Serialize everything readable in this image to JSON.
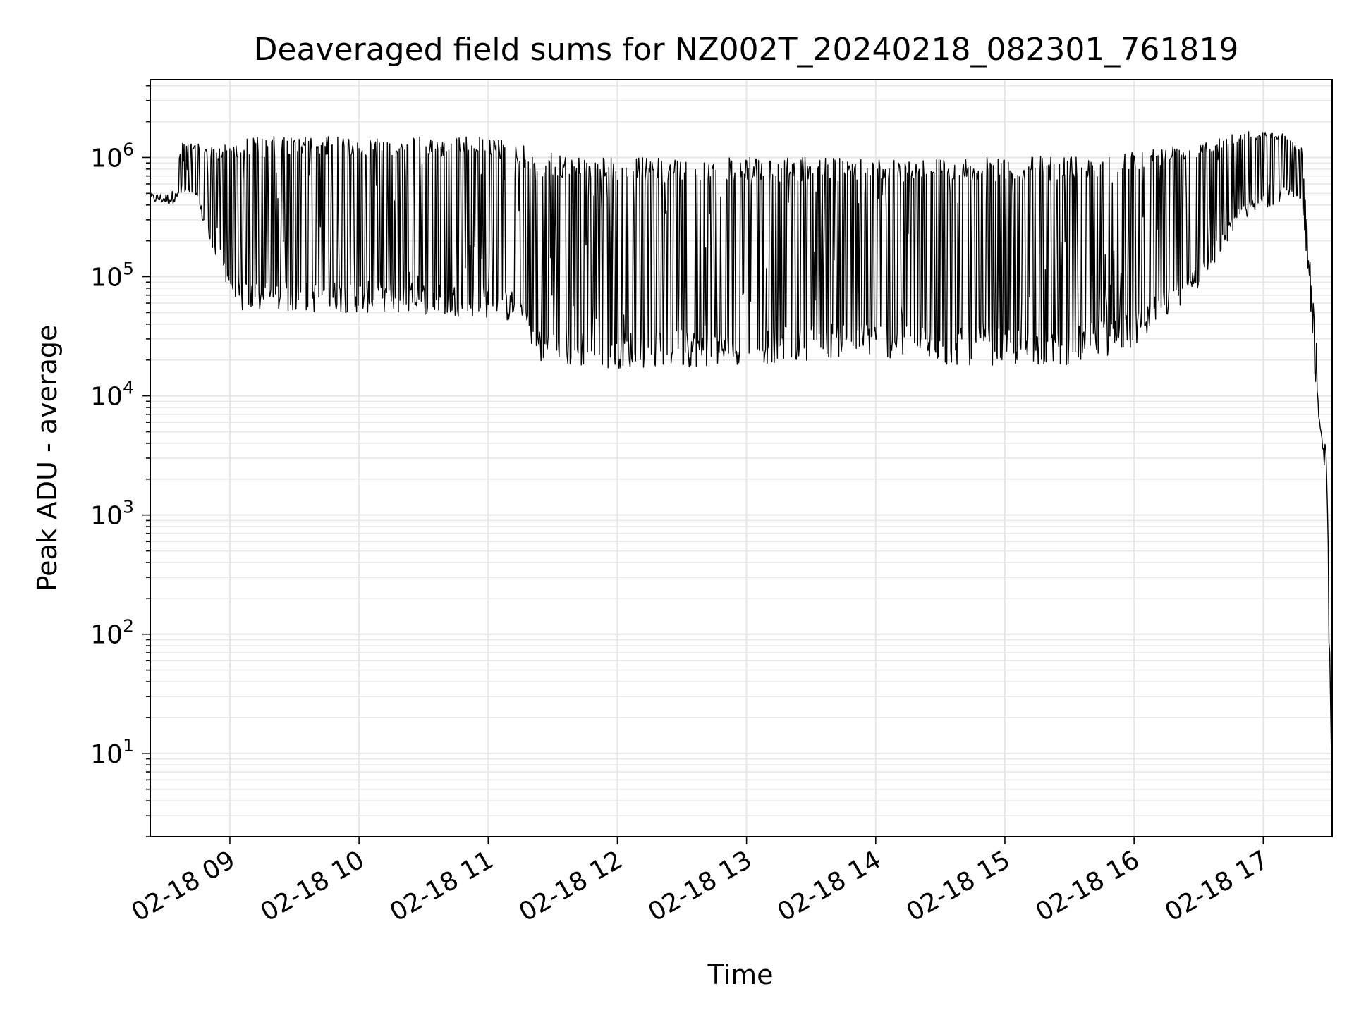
{
  "chart_data": {
    "type": "line",
    "title": "Deaveraged field sums for NZ002T_20240218_082301_761819",
    "xlabel": "Time",
    "ylabel": "Peak ADU - average",
    "yscale": "log",
    "grid": true,
    "x_tick_labels": [
      "02-18 09",
      "02-18 10",
      "02-18 11",
      "02-18 12",
      "02-18 13",
      "02-18 14",
      "02-18 15",
      "02-18 16",
      "02-18 17"
    ],
    "y_tick_labels": [
      {
        "base": "10",
        "exp": "1"
      },
      {
        "base": "10",
        "exp": "2"
      },
      {
        "base": "10",
        "exp": "3"
      },
      {
        "base": "10",
        "exp": "4"
      },
      {
        "base": "10",
        "exp": "5"
      },
      {
        "base": "10",
        "exp": "6"
      }
    ],
    "xlim": [
      "2024-02-18 08:23",
      "2024-02-18 17:32"
    ],
    "ylim": [
      2,
      4500000
    ],
    "line_color": "#000000",
    "grid_color": "#e6e6e6",
    "envelope": [
      {
        "t": "2024-02-18 08:23",
        "upper": 500000,
        "lower": 420000
      },
      {
        "t": "2024-02-18 08:33",
        "upper": 500000,
        "lower": 400000
      },
      {
        "t": "2024-02-18 08:38",
        "upper": 1400000,
        "lower": 500000
      },
      {
        "t": "2024-02-18 08:45",
        "upper": 1300000,
        "lower": 400000
      },
      {
        "t": "2024-02-18 08:52",
        "upper": 1200000,
        "lower": 150000
      },
      {
        "t": "2024-02-18 09:05",
        "upper": 1500000,
        "lower": 50000
      },
      {
        "t": "2024-02-18 09:30",
        "upper": 1500000,
        "lower": 50000
      },
      {
        "t": "2024-02-18 10:00",
        "upper": 1500000,
        "lower": 50000
      },
      {
        "t": "2024-02-18 10:30",
        "upper": 1500000,
        "lower": 48000
      },
      {
        "t": "2024-02-18 11:00",
        "upper": 1500000,
        "lower": 45000
      },
      {
        "t": "2024-02-18 11:15",
        "upper": 1300000,
        "lower": 40000
      },
      {
        "t": "2024-02-18 11:25",
        "upper": 1100000,
        "lower": 18000
      },
      {
        "t": "2024-02-18 12:00",
        "upper": 1000000,
        "lower": 17000
      },
      {
        "t": "2024-02-18 13:00",
        "upper": 1000000,
        "lower": 18000
      },
      {
        "t": "2024-02-18 13:30",
        "upper": 1000000,
        "lower": 20000
      },
      {
        "t": "2024-02-18 13:55",
        "upper": 1000000,
        "lower": 22000
      },
      {
        "t": "2024-02-18 14:30",
        "upper": 1000000,
        "lower": 18000
      },
      {
        "t": "2024-02-18 15:00",
        "upper": 1000000,
        "lower": 18000
      },
      {
        "t": "2024-02-18 15:30",
        "upper": 1050000,
        "lower": 18000
      },
      {
        "t": "2024-02-18 16:00",
        "upper": 1150000,
        "lower": 25000
      },
      {
        "t": "2024-02-18 16:30",
        "upper": 1400000,
        "lower": 80000
      },
      {
        "t": "2024-02-18 16:50",
        "upper": 1700000,
        "lower": 300000
      },
      {
        "t": "2024-02-18 17:10",
        "upper": 1600000,
        "lower": 450000
      },
      {
        "t": "2024-02-18 17:18",
        "upper": 1200000,
        "lower": 400000
      },
      {
        "t": "2024-02-18 17:21",
        "upper": 200000,
        "lower": 100000
      },
      {
        "t": "2024-02-18 17:24",
        "upper": 40000,
        "lower": 15000
      },
      {
        "t": "2024-02-18 17:26",
        "upper": 18000,
        "lower": 6000
      },
      {
        "t": "2024-02-18 17:28",
        "upper": 5000,
        "lower": 3000
      },
      {
        "t": "2024-02-18 17:30",
        "upper": 3000,
        "lower": 1000
      },
      {
        "t": "2024-02-18 17:31",
        "upper": 50,
        "lower": 10
      },
      {
        "t": "2024-02-18 17:32",
        "upper": 4,
        "lower": 4
      }
    ]
  }
}
